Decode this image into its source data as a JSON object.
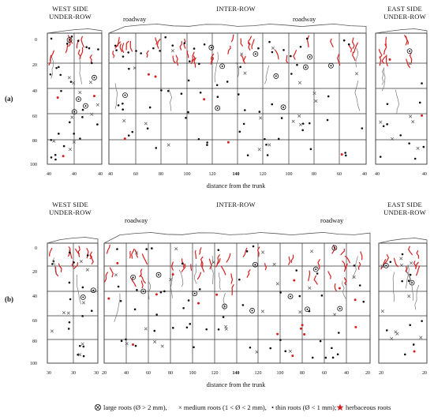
{
  "panels": [
    {
      "label": "(a)",
      "headers": {
        "west": [
          "WEST SIDE",
          "UNDER-ROW"
        ],
        "inter": "INTER-ROW",
        "east": [
          "EAST SIDE",
          "UNDER-ROW"
        ],
        "roadway_left": "roadway",
        "roadway_right": "roadway"
      },
      "depth_ticks": [
        "0",
        "20",
        "40",
        "60",
        "80",
        "100"
      ],
      "x_ticks": {
        "west": [
          "40",
          "40",
          "40"
        ],
        "inter": [
          "40",
          "60",
          "80",
          "100",
          "120",
          "140",
          "120",
          "100",
          "80",
          "60",
          "40"
        ],
        "east": [
          "40",
          "40"
        ]
      },
      "xlabel": "distance from the trunk"
    },
    {
      "label": "(b)",
      "headers": {
        "west": [
          "WEST SIDE",
          "UNDER-ROW"
        ],
        "inter": "INTER-ROW",
        "east": [
          "EAST SIDE",
          "UNDER-ROW"
        ],
        "roadway_left": "roadway",
        "roadway_right": "roadway"
      },
      "depth_ticks": [
        "0",
        "20",
        "40",
        "60",
        "80",
        "100"
      ],
      "x_ticks": {
        "west": [
          "30",
          "30",
          "30"
        ],
        "inter": [
          "20",
          "40",
          "60",
          "80",
          "100",
          "120",
          "140",
          "120",
          "100",
          "80",
          "60",
          "40",
          "20"
        ],
        "east": [
          "20",
          "20"
        ]
      },
      "xlabel": "distance from the trunk"
    }
  ],
  "bold_tick": "140",
  "legend": {
    "large": "large roots (Ø > 2 mm),",
    "medium": "× medium roots (1 < Ø < 2 mm),",
    "thin": "• thin roots (Ø < 1 mm);",
    "herb": "herbaceous roots"
  },
  "colors": {
    "herbaceous": "#d42020",
    "roots": "#111111",
    "grid": "#333333"
  }
}
